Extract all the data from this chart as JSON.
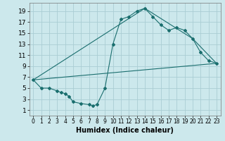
{
  "title": "",
  "xlabel": "Humidex (Indice chaleur)",
  "bg_color": "#cce8ec",
  "grid_color": "#aacdd4",
  "line_color": "#1a6e6e",
  "xlim": [
    -0.5,
    23.5
  ],
  "ylim": [
    0,
    20.5
  ],
  "xticks": [
    0,
    1,
    2,
    3,
    4,
    5,
    6,
    7,
    8,
    9,
    10,
    11,
    12,
    13,
    14,
    15,
    16,
    17,
    18,
    19,
    20,
    21,
    22,
    23
  ],
  "yticks": [
    1,
    3,
    5,
    7,
    9,
    11,
    13,
    15,
    17,
    19
  ],
  "series1_x": [
    0,
    1,
    2,
    3,
    3.5,
    4,
    4.5,
    5,
    6,
    7,
    7.5,
    8,
    9,
    10,
    11,
    12,
    13,
    14,
    15,
    16,
    17,
    18,
    19,
    20,
    21,
    22,
    23
  ],
  "series1_y": [
    6.5,
    5,
    5,
    4.5,
    4.2,
    4,
    3.5,
    2.5,
    2.2,
    2.0,
    1.8,
    2.0,
    5,
    13,
    17.5,
    18,
    19,
    19.5,
    18,
    16.5,
    15.5,
    16,
    15.5,
    14,
    11.5,
    10,
    9.5
  ],
  "series2_x": [
    0,
    23
  ],
  "series2_y": [
    6.5,
    9.5
  ],
  "series3_x": [
    0,
    14,
    20,
    23
  ],
  "series3_y": [
    6.5,
    19.5,
    14,
    9.5
  ],
  "marker_style": "D",
  "marker_size": 2.0,
  "lw": 0.8,
  "xlabel_fontsize": 7,
  "tick_fontsize_x": 5.5,
  "tick_fontsize_y": 6.5
}
